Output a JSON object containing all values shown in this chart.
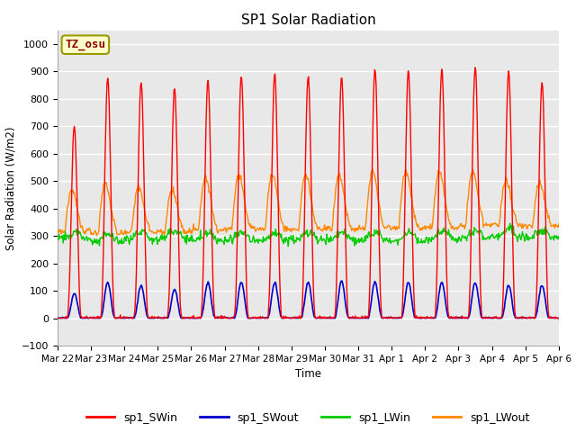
{
  "title": "SP1 Solar Radiation",
  "ylabel": "Solar Radiation (W/m2)",
  "xlabel": "Time",
  "ylim": [
    -100,
    1050
  ],
  "yticks": [
    -100,
    0,
    100,
    200,
    300,
    400,
    500,
    600,
    700,
    800,
    900,
    1000
  ],
  "annotation_text": "TZ_osu",
  "annotation_color": "#8b0000",
  "annotation_bg": "#ffffcc",
  "annotation_border": "#999900",
  "background_color": "#e8e8e8",
  "grid_color": "white",
  "colors": {
    "sp1_SWin": "#ff0000",
    "sp1_SWout": "#0000cc",
    "sp1_LWin": "#00cc00",
    "sp1_LWout": "#ff8800"
  },
  "x_tick_labels": [
    "Mar 22",
    "Mar 23",
    "Mar 24",
    "Mar 25",
    "Mar 26",
    "Mar 27",
    "Mar 28",
    "Mar 29",
    "Mar 30",
    "Mar 31",
    "Apr 1",
    "Apr 2",
    "Apr 3",
    "Apr 4",
    "Apr 5",
    "Apr 6"
  ],
  "sw_in_peaks": [
    700,
    880,
    860,
    840,
    870,
    885,
    890,
    880,
    880,
    910,
    905,
    910,
    920,
    900,
    860
  ],
  "sw_out_peaks": [
    90,
    130,
    120,
    105,
    130,
    130,
    130,
    130,
    135,
    130,
    130,
    130,
    130,
    120,
    120
  ],
  "lw_in_base": [
    290,
    280,
    290,
    290,
    285,
    285,
    285,
    285,
    285,
    285,
    285,
    290,
    295,
    295,
    295
  ],
  "lw_out_day_peaks": [
    450,
    470,
    460,
    450,
    490,
    500,
    500,
    500,
    500,
    510,
    510,
    510,
    510,
    480,
    475
  ],
  "lw_out_night": [
    315,
    310,
    315,
    315,
    320,
    325,
    325,
    325,
    325,
    330,
    330,
    330,
    340,
    340,
    335
  ]
}
